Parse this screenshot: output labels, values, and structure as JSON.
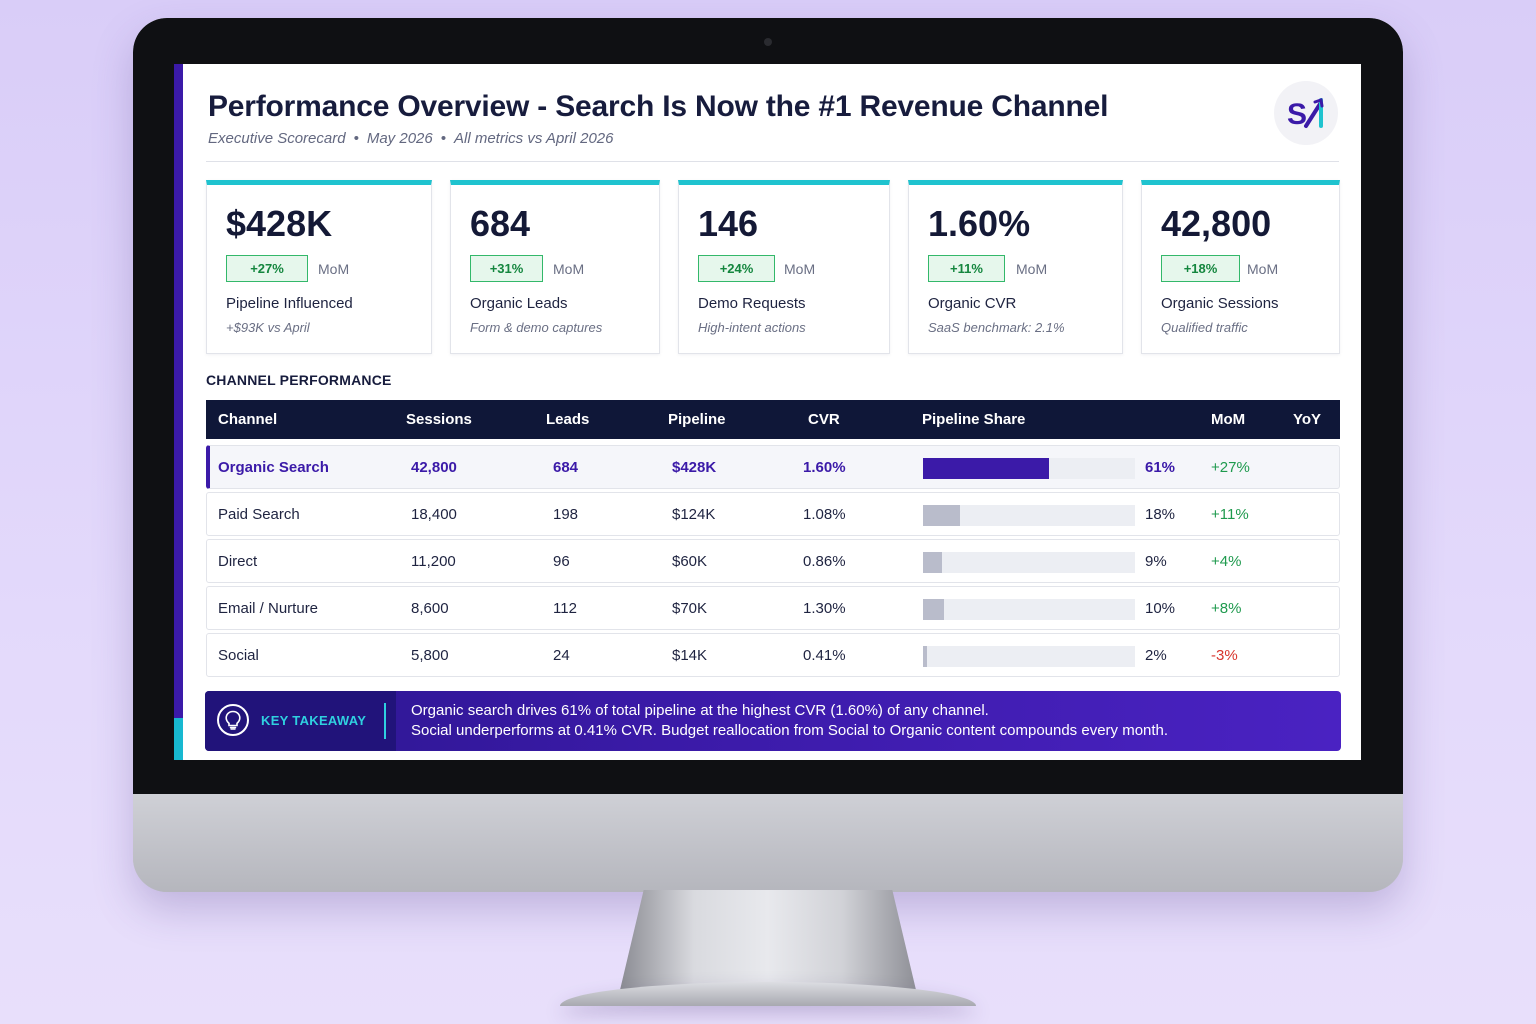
{
  "header": {
    "title": "Performance Overview - Search Is Now the #1 Revenue Channel",
    "subtitle_parts": [
      "Executive Scorecard",
      "May 2026",
      "All metrics vs April 2026"
    ],
    "separator": "•",
    "logo_text": "S"
  },
  "kpis": [
    {
      "value": "$428K",
      "change": "+27%",
      "period": "MoM",
      "label": "Pipeline Influenced",
      "note": "+$93K vs April"
    },
    {
      "value": "684",
      "change": "+31%",
      "period": "MoM",
      "label": "Organic Leads",
      "note": "Form & demo captures"
    },
    {
      "value": "146",
      "change": "+24%",
      "period": "MoM",
      "label": "Demo Requests",
      "note": "High-intent actions"
    },
    {
      "value": "1.60%",
      "change": "+11%",
      "period": "MoM",
      "label": "Organic CVR",
      "note": "SaaS benchmark: 2.1%"
    },
    {
      "value": "42,800",
      "change": "+18%",
      "period": "MoM",
      "label": "Organic Sessions",
      "note": "Qualified traffic"
    }
  ],
  "channel_table": {
    "section_title": "CHANNEL PERFORMANCE",
    "headers": [
      "Channel",
      "Sessions",
      "Leads",
      "Pipeline",
      "CVR",
      "Pipeline Share",
      "MoM",
      "YoY"
    ],
    "rows": [
      {
        "channel": "Organic Search",
        "sessions": "42,800",
        "leads": "684",
        "pipeline": "$428K",
        "cvr": "1.60%",
        "share_label": "61%",
        "share": 0.61,
        "mom": "+27%",
        "yoy": ""
      },
      {
        "channel": "Paid Search",
        "sessions": "18,400",
        "leads": "198",
        "pipeline": "$124K",
        "cvr": "1.08%",
        "share_label": "18%",
        "share": 0.18,
        "mom": "+11%",
        "yoy": ""
      },
      {
        "channel": "Direct",
        "sessions": "11,200",
        "leads": "96",
        "pipeline": "$60K",
        "cvr": "0.86%",
        "share_label": "9%",
        "share": 0.09,
        "mom": "+4%",
        "yoy": ""
      },
      {
        "channel": "Email / Nurture",
        "sessions": "8,600",
        "leads": "112",
        "pipeline": "$70K",
        "cvr": "1.30%",
        "share_label": "10%",
        "share": 0.1,
        "mom": "+8%",
        "yoy": ""
      },
      {
        "channel": "Social",
        "sessions": "5,800",
        "leads": "24",
        "pipeline": "$14K",
        "cvr": "0.41%",
        "share_label": "2%",
        "share": 0.02,
        "mom": "-3%",
        "yoy": ""
      }
    ]
  },
  "takeaway": {
    "label": "KEY TAKEAWAY",
    "line1": "Organic search drives 61% of total pipeline at the highest CVR (1.60%) of any channel.",
    "line2": "Social underperforms at 0.41% CVR. Budget reallocation from Social to Organic content compounds every month.",
    "icon": "lightbulb-icon"
  },
  "colors": {
    "accent": "#3b1aa8",
    "teal": "#1fc3cf",
    "positive": "#1f9a4e",
    "negative": "#d8342c",
    "table_header": "#0f1738"
  }
}
